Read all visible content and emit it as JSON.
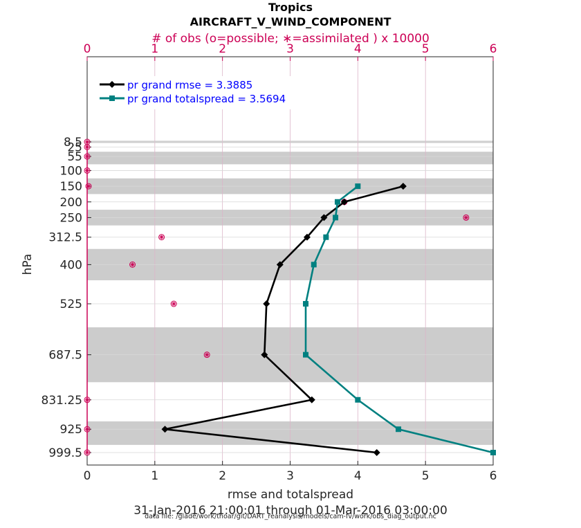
{
  "colors": {
    "rmse": "#000000",
    "spread": "#008080",
    "obs": "#cc0055",
    "top_axis": "#cc0055",
    "legend_text": "#0000ff",
    "band": "#cccccc"
  },
  "chart_data": {
    "type": "line",
    "title": "Tropics",
    "subtitle": "AIRCRAFT_V_WIND_COMPONENT",
    "top_axis_label": "# of obs (o=possible; ∗=assimilated ) x 10000",
    "xlabel": "rmse and totalspread",
    "ylabel": "hPa",
    "date_range": "31-Jan-2016 21:00:01 through 01-Mar-2016 03:00:00",
    "data_file": "data file: /glade/work/thoar/git/DART_reanalysis/models/cam-fv/work/obs_diag_output.nc",
    "xlim": [
      0,
      6
    ],
    "top_xlim": [
      0,
      6
    ],
    "y_reversed": true,
    "x_ticks": [
      "0",
      "1",
      "2",
      "3",
      "4",
      "5",
      "6"
    ],
    "top_ticks": [
      "0",
      "1",
      "2",
      "3",
      "4",
      "5",
      "6"
    ],
    "y_ticks": [
      "8.5",
      "25",
      "55",
      "100",
      "150",
      "200",
      "250",
      "312.5",
      "400",
      "525",
      "687.5",
      "831.25",
      "925",
      "999.5"
    ],
    "levels": [
      8.5,
      25,
      55,
      100,
      150,
      200,
      250,
      312.5,
      400,
      525,
      687.5,
      831.25,
      925,
      999.5
    ],
    "shaded_bands": [
      [
        5,
        12
      ],
      [
        40,
        80
      ],
      [
        125,
        175
      ],
      [
        225,
        275
      ],
      [
        350,
        450
      ],
      [
        600,
        775
      ],
      [
        900,
        975
      ]
    ],
    "legend": [
      "pr grand rmse = 3.3885",
      "pr grand totalspread = 3.5694"
    ],
    "series": [
      {
        "name": "pr grand rmse = 3.3885",
        "x": [
          4.67,
          3.8,
          3.5,
          3.25,
          2.85,
          2.65,
          2.62,
          3.32,
          1.15,
          4.28
        ],
        "y": [
          150,
          200,
          250,
          312.5,
          400,
          525,
          687.5,
          831.25,
          925,
          999.5
        ]
      },
      {
        "name": "pr grand totalspread = 3.5694",
        "x": [
          4.0,
          3.7,
          3.67,
          3.53,
          3.35,
          3.23,
          3.23,
          4.0,
          4.6,
          6.0
        ],
        "y": [
          150,
          200,
          250,
          312.5,
          400,
          525,
          687.5,
          831.25,
          925,
          999.5
        ]
      }
    ],
    "obs_counts": {
      "y": [
        8.5,
        25,
        55,
        100,
        150,
        200,
        250,
        312.5,
        400,
        525,
        687.5,
        831.25,
        925,
        999.5
      ],
      "possible": [
        0.0,
        0.0,
        0.0,
        0.0,
        0.02,
        3.8,
        5.6,
        1.1,
        0.67,
        1.28,
        1.77,
        0.0,
        0.0,
        0.0
      ],
      "assimilated": [
        0.0,
        0.0,
        0.0,
        0.0,
        0.02,
        3.8,
        5.6,
        1.1,
        0.67,
        1.28,
        1.77,
        0.0,
        0.0,
        0.0
      ]
    }
  }
}
